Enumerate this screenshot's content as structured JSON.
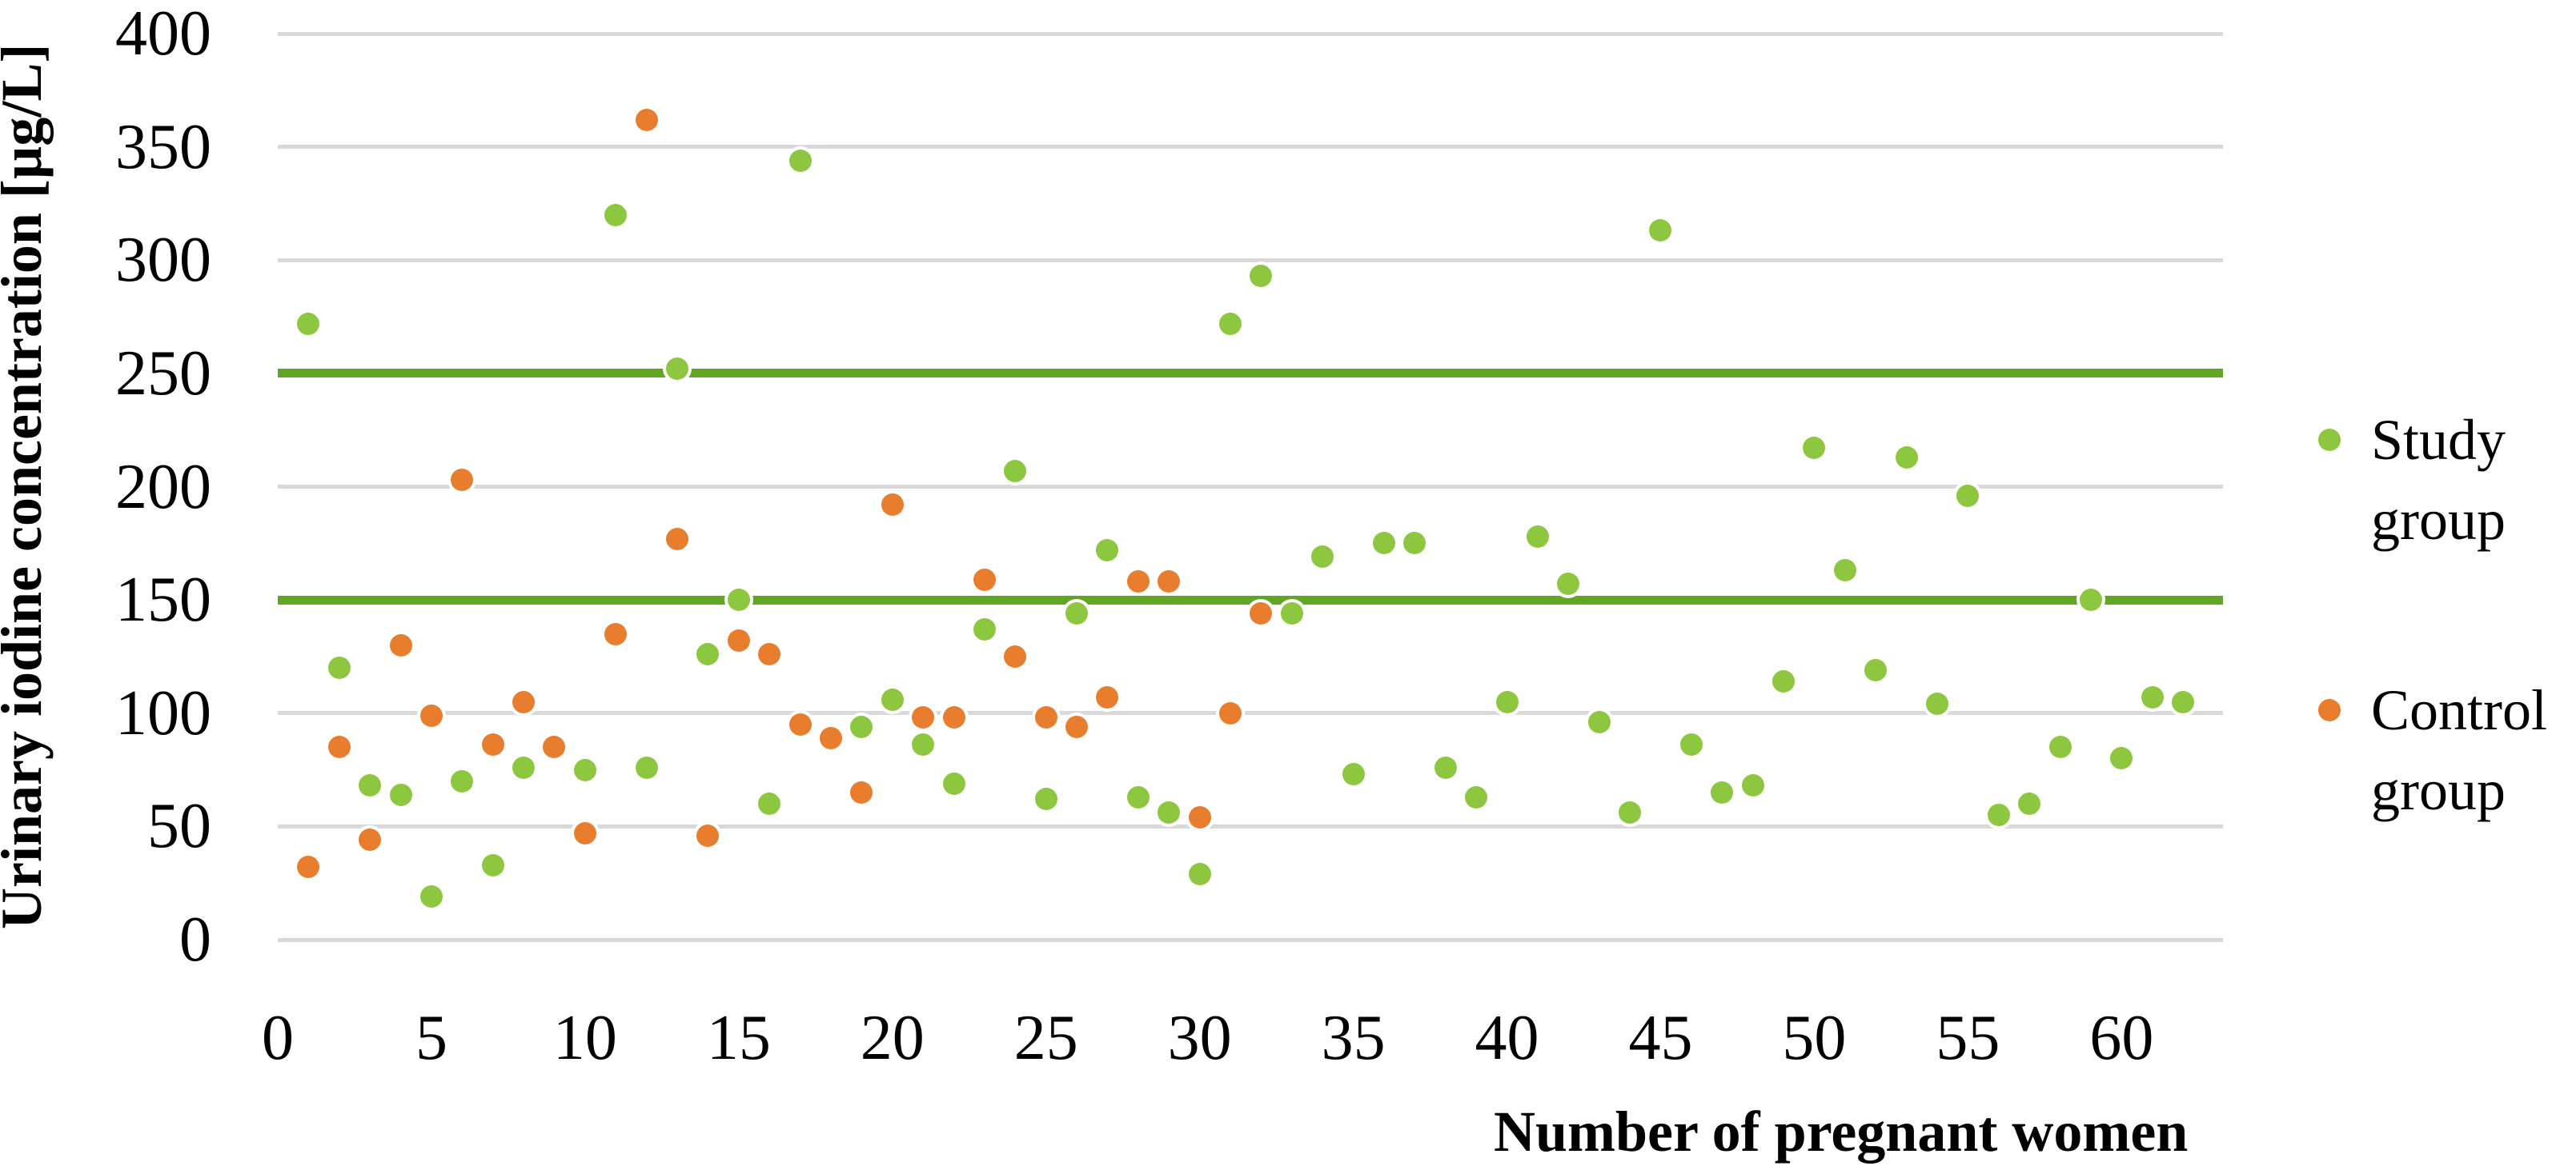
{
  "chart_data": {
    "type": "scatter",
    "title": "",
    "xlabel": "Number of pregnant women",
    "ylabel": "Urinary iodine concentration [µg/L]",
    "xlim": [
      0,
      63.3
    ],
    "ylim": [
      0,
      400
    ],
    "x_ticks": [
      0,
      5,
      10,
      15,
      20,
      25,
      30,
      35,
      40,
      45,
      50,
      55,
      60
    ],
    "y_ticks": [
      0,
      50,
      100,
      150,
      200,
      250,
      300,
      350,
      400
    ],
    "grid": "horizontal",
    "legend_position": "right",
    "reference_lines": [
      {
        "y": 150,
        "color": "#60a622"
      },
      {
        "y": 250,
        "color": "#60a622"
      }
    ],
    "series": [
      {
        "name": "Study group",
        "color": "#8dc63f",
        "points": [
          [
            1,
            272
          ],
          [
            2,
            120
          ],
          [
            3,
            68
          ],
          [
            4,
            64
          ],
          [
            5,
            19
          ],
          [
            6,
            70
          ],
          [
            7,
            33
          ],
          [
            8,
            76
          ],
          [
            10,
            75
          ],
          [
            11,
            320
          ],
          [
            12,
            76
          ],
          [
            13,
            252
          ],
          [
            14,
            126
          ],
          [
            15,
            150
          ],
          [
            16,
            60
          ],
          [
            17,
            344
          ],
          [
            19,
            94
          ],
          [
            20,
            106
          ],
          [
            21,
            86
          ],
          [
            22,
            69
          ],
          [
            23,
            137
          ],
          [
            24,
            207
          ],
          [
            25,
            62
          ],
          [
            26,
            144
          ],
          [
            27,
            172
          ],
          [
            28,
            63
          ],
          [
            29,
            56
          ],
          [
            30,
            29
          ],
          [
            31,
            272
          ],
          [
            32,
            293
          ],
          [
            33,
            144
          ],
          [
            34,
            169
          ],
          [
            35,
            73
          ],
          [
            36,
            175
          ],
          [
            37,
            175
          ],
          [
            38,
            76
          ],
          [
            39,
            63
          ],
          [
            40,
            105
          ],
          [
            41,
            178
          ],
          [
            42,
            157
          ],
          [
            43,
            96
          ],
          [
            44,
            56
          ],
          [
            45,
            313
          ],
          [
            46,
            86
          ],
          [
            47,
            65
          ],
          [
            48,
            68
          ],
          [
            49,
            114
          ],
          [
            50,
            217
          ],
          [
            51,
            163
          ],
          [
            52,
            119
          ],
          [
            53,
            213
          ],
          [
            54,
            104
          ],
          [
            55,
            196
          ],
          [
            56,
            55
          ],
          [
            57,
            60
          ],
          [
            58,
            85
          ],
          [
            59,
            150
          ],
          [
            60,
            80
          ],
          [
            61,
            107
          ],
          [
            62,
            105
          ]
        ]
      },
      {
        "name": "Control group",
        "color": "#e87e2d",
        "points": [
          [
            1,
            32
          ],
          [
            2,
            85
          ],
          [
            3,
            44
          ],
          [
            4,
            130
          ],
          [
            5,
            99
          ],
          [
            6,
            203
          ],
          [
            7,
            86
          ],
          [
            8,
            105
          ],
          [
            9,
            85
          ],
          [
            10,
            47
          ],
          [
            11,
            135
          ],
          [
            12,
            362
          ],
          [
            13,
            177
          ],
          [
            14,
            46
          ],
          [
            15,
            132
          ],
          [
            16,
            126
          ],
          [
            17,
            95
          ],
          [
            18,
            89
          ],
          [
            19,
            65
          ],
          [
            20,
            192
          ],
          [
            21,
            98
          ],
          [
            22,
            98
          ],
          [
            23,
            159
          ],
          [
            24,
            125
          ],
          [
            25,
            98
          ],
          [
            26,
            94
          ],
          [
            27,
            107
          ],
          [
            28,
            158
          ],
          [
            29,
            158
          ],
          [
            30,
            54
          ],
          [
            31,
            100
          ],
          [
            32,
            144
          ]
        ]
      }
    ]
  },
  "legend": {
    "study_label": "Study\ngroup",
    "control_label": "Control\ngroup"
  },
  "colors": {
    "study_group": "#8dc63f",
    "control_group": "#e87e2d",
    "reference_line": "#60a622",
    "gridline": "#d9d9d9",
    "text": "#000000",
    "background": "#ffffff"
  }
}
